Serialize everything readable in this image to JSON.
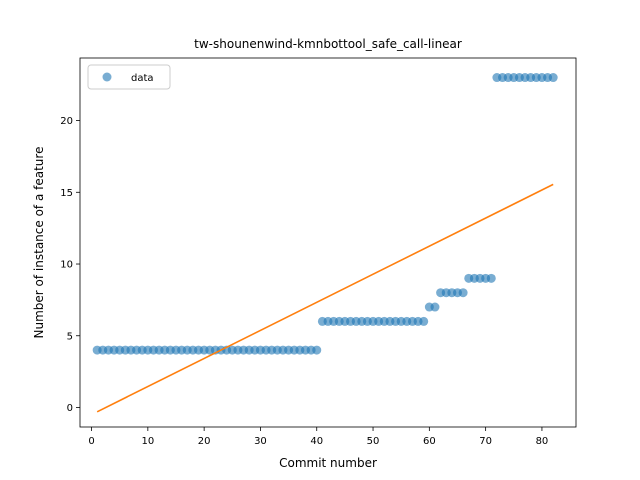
{
  "chart_data": {
    "type": "scatter",
    "title": "tw-shounenwind-kmnbottool_safe_call-linear",
    "xlabel": "Commit number",
    "ylabel": "Number of instance of a feature",
    "xlim": [
      -2.05,
      86.05
    ],
    "ylim": [
      -1.36,
      24.36
    ],
    "xticks": [
      0,
      10,
      20,
      30,
      40,
      50,
      60,
      70,
      80
    ],
    "yticks": [
      0,
      5,
      10,
      15,
      20
    ],
    "grid": false,
    "legend_position": "upper-left",
    "series": [
      {
        "name": "data",
        "kind": "scatter",
        "color": "#1f77b4",
        "x": [
          1,
          2,
          3,
          4,
          5,
          6,
          7,
          8,
          9,
          10,
          11,
          12,
          13,
          14,
          15,
          16,
          17,
          18,
          19,
          20,
          21,
          22,
          23,
          24,
          25,
          26,
          27,
          28,
          29,
          30,
          31,
          32,
          33,
          34,
          35,
          36,
          37,
          38,
          39,
          40,
          41,
          42,
          43,
          44,
          45,
          46,
          47,
          48,
          49,
          50,
          51,
          52,
          53,
          54,
          55,
          56,
          57,
          58,
          59,
          60,
          61,
          62,
          63,
          64,
          65,
          66,
          67,
          68,
          69,
          70,
          71,
          72,
          73,
          74,
          75,
          76,
          77,
          78,
          79,
          80,
          81,
          82
        ],
        "y": [
          4,
          4,
          4,
          4,
          4,
          4,
          4,
          4,
          4,
          4,
          4,
          4,
          4,
          4,
          4,
          4,
          4,
          4,
          4,
          4,
          4,
          4,
          4,
          4,
          4,
          4,
          4,
          4,
          4,
          4,
          4,
          4,
          4,
          4,
          4,
          4,
          4,
          4,
          4,
          4,
          6,
          6,
          6,
          6,
          6,
          6,
          6,
          6,
          6,
          6,
          6,
          6,
          6,
          6,
          6,
          6,
          6,
          6,
          6,
          7,
          7,
          8,
          8,
          8,
          8,
          8,
          9,
          9,
          9,
          9,
          9,
          23,
          23,
          23,
          23,
          23,
          23,
          23,
          23,
          23,
          23,
          23
        ]
      },
      {
        "name": "",
        "kind": "line",
        "color": "#ff7f0e",
        "x": [
          1,
          82
        ],
        "y": [
          -0.3,
          15.55
        ]
      }
    ]
  }
}
